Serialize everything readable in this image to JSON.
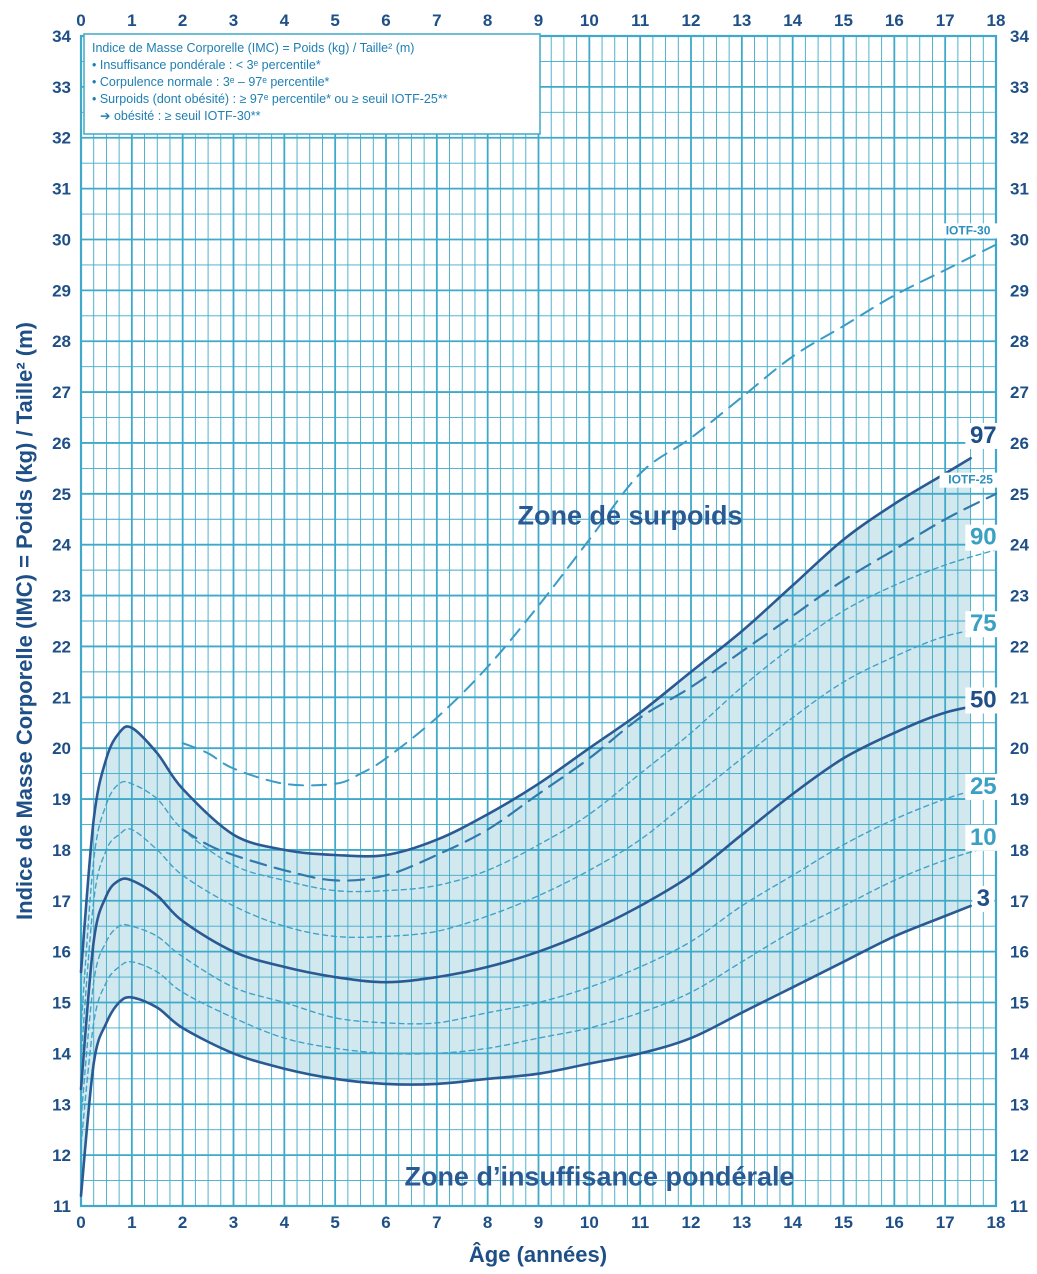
{
  "legend": [
    "Indice de Masse Corporelle (IMC) = Poids (kg) / Taille² (m)",
    "• Insuffisance pondérale : < 3ᵉ percentile*",
    "• Corpulence normale : 3ᵉ – 97ᵉ percentile*",
    "• Surpoids (dont obésité) : ≥ 97ᵉ percentile* ou ≥ seuil IOTF-25**",
    "➔ obésité : ≥ seuil IOTF-30**"
  ],
  "colors": {
    "grid": "#3fa9c9",
    "dark_line": "#2a5a93",
    "light_line": "#3fa3c8",
    "band_fill": "#d2e8ef",
    "text": "#1e4f86"
  },
  "chart_data": {
    "type": "line",
    "xlabel": "Âge (années)",
    "ylabel": "Indice de Masse Corporelle (IMC) = Poids (kg) / Taille² (m)",
    "xlim": [
      0,
      18
    ],
    "ylim": [
      11,
      34
    ],
    "x_ticks": [
      0,
      1,
      2,
      3,
      4,
      5,
      6,
      7,
      8,
      9,
      10,
      11,
      12,
      13,
      14,
      15,
      16,
      17,
      18
    ],
    "y_ticks": [
      11,
      12,
      13,
      14,
      15,
      16,
      17,
      18,
      19,
      20,
      21,
      22,
      23,
      24,
      25,
      26,
      27,
      28,
      29,
      30,
      31,
      32,
      33,
      34
    ],
    "grid": true,
    "annotations": [
      {
        "text": "Zone de surpoids",
        "x": 10.8,
        "y": 24.4
      },
      {
        "text": "Zone d’insuffisance pondérale",
        "x": 10.2,
        "y": 11.4
      }
    ],
    "shaded_band": {
      "lower": "3",
      "upper": "97"
    },
    "series": [
      {
        "name": "3",
        "style": "solid-dark",
        "x": [
          0,
          0.25,
          0.5,
          0.75,
          1,
          1.5,
          2,
          3,
          4,
          5,
          6,
          7,
          8,
          9,
          10,
          11,
          12,
          13,
          14,
          15,
          16,
          17,
          17.5
        ],
        "y": [
          11.2,
          13.8,
          14.6,
          15.0,
          15.1,
          14.9,
          14.5,
          14.0,
          13.7,
          13.5,
          13.4,
          13.4,
          13.5,
          13.6,
          13.8,
          14.0,
          14.3,
          14.8,
          15.3,
          15.8,
          16.3,
          16.7,
          16.9
        ]
      },
      {
        "name": "10",
        "style": "dashed-light",
        "x": [
          0,
          0.25,
          0.5,
          0.75,
          1,
          1.5,
          2,
          3,
          4,
          5,
          6,
          7,
          8,
          9,
          10,
          11,
          12,
          13,
          14,
          15,
          16,
          17,
          18
        ],
        "y": [
          12.2,
          14.6,
          15.4,
          15.7,
          15.8,
          15.6,
          15.2,
          14.7,
          14.3,
          14.1,
          14.0,
          14.0,
          14.1,
          14.3,
          14.5,
          14.8,
          15.2,
          15.8,
          16.4,
          16.9,
          17.4,
          17.8,
          18.1
        ]
      },
      {
        "name": "25",
        "style": "dashed-light",
        "x": [
          0,
          0.25,
          0.5,
          0.75,
          1,
          1.5,
          2,
          3,
          4,
          5,
          6,
          7,
          8,
          9,
          10,
          11,
          12,
          13,
          14,
          15,
          16,
          17,
          18
        ],
        "y": [
          12.7,
          15.4,
          16.2,
          16.5,
          16.5,
          16.3,
          15.9,
          15.3,
          15.0,
          14.7,
          14.6,
          14.6,
          14.8,
          15.0,
          15.3,
          15.7,
          16.2,
          16.9,
          17.5,
          18.1,
          18.6,
          19.0,
          19.3
        ]
      },
      {
        "name": "50",
        "style": "solid-dark",
        "x": [
          0,
          0.25,
          0.5,
          0.75,
          1,
          1.5,
          2,
          3,
          4,
          5,
          6,
          7,
          8,
          9,
          10,
          11,
          12,
          13,
          14,
          15,
          16,
          17,
          18
        ],
        "y": [
          13.3,
          16.2,
          17.1,
          17.4,
          17.4,
          17.1,
          16.6,
          16.0,
          15.7,
          15.5,
          15.4,
          15.5,
          15.7,
          16.0,
          16.4,
          16.9,
          17.5,
          18.3,
          19.1,
          19.8,
          20.3,
          20.7,
          20.9
        ]
      },
      {
        "name": "75",
        "style": "dashed-light",
        "x": [
          0,
          0.25,
          0.5,
          0.75,
          1,
          1.5,
          2,
          3,
          4,
          5,
          6,
          7,
          8,
          9,
          10,
          11,
          12,
          13,
          14,
          15,
          16,
          17,
          18
        ],
        "y": [
          13.9,
          17.0,
          18.0,
          18.3,
          18.4,
          18.0,
          17.5,
          16.9,
          16.5,
          16.3,
          16.3,
          16.4,
          16.7,
          17.1,
          17.6,
          18.2,
          19.0,
          19.8,
          20.6,
          21.3,
          21.8,
          22.2,
          22.4
        ]
      },
      {
        "name": "90",
        "style": "dashed-light",
        "x": [
          0,
          0.25,
          0.5,
          0.75,
          1,
          1.5,
          2,
          3,
          4,
          5,
          6,
          7,
          8,
          9,
          10,
          11,
          12,
          13,
          14,
          15,
          16,
          17,
          18
        ],
        "y": [
          14.5,
          17.8,
          18.9,
          19.3,
          19.3,
          19.0,
          18.4,
          17.7,
          17.4,
          17.2,
          17.2,
          17.3,
          17.6,
          18.1,
          18.7,
          19.5,
          20.3,
          21.2,
          22.0,
          22.7,
          23.2,
          23.6,
          23.9
        ]
      },
      {
        "name": "97",
        "style": "solid-dark",
        "x": [
          0,
          0.25,
          0.5,
          0.75,
          1,
          1.5,
          2,
          3,
          4,
          5,
          6,
          7,
          8,
          9,
          10,
          11,
          12,
          13,
          14,
          15,
          16,
          17,
          17.5
        ],
        "y": [
          15.6,
          18.6,
          19.8,
          20.3,
          20.4,
          19.9,
          19.2,
          18.3,
          18.0,
          17.9,
          17.9,
          18.2,
          18.7,
          19.3,
          20.0,
          20.7,
          21.5,
          22.3,
          23.2,
          24.1,
          24.8,
          25.4,
          25.7
        ]
      },
      {
        "name": "IOTF-25",
        "style": "longdash-mid",
        "x": [
          2,
          2.5,
          3,
          4,
          5,
          6,
          7,
          8,
          9,
          10,
          11,
          12,
          13,
          14,
          15,
          16,
          17,
          18
        ],
        "y": [
          18.4,
          18.1,
          17.9,
          17.6,
          17.4,
          17.5,
          17.9,
          18.4,
          19.1,
          19.8,
          20.6,
          21.2,
          21.9,
          22.6,
          23.3,
          23.9,
          24.5,
          25.0
        ]
      },
      {
        "name": "IOTF-30",
        "style": "longdash-light",
        "x": [
          2,
          2.5,
          3,
          4,
          5,
          5.5,
          6,
          7,
          8,
          9,
          10,
          11,
          12,
          13,
          14,
          15,
          16,
          17,
          18
        ],
        "y": [
          20.1,
          19.9,
          19.6,
          19.3,
          19.3,
          19.5,
          19.8,
          20.6,
          21.6,
          22.8,
          24.1,
          25.4,
          26.1,
          26.9,
          27.7,
          28.3,
          28.9,
          29.4,
          29.9
        ]
      }
    ],
    "curve_labels": [
      {
        "text": "97",
        "series": "97",
        "style": "dark",
        "x": 17.75,
        "y": 26.0
      },
      {
        "text": "IOTF-25",
        "series": "IOTF-25",
        "style": "iotf",
        "x": 17.5,
        "y": 25.2
      },
      {
        "text": "90",
        "series": "90",
        "style": "light",
        "x": 17.75,
        "y": 24.0
      },
      {
        "text": "75",
        "series": "75",
        "style": "light",
        "x": 17.75,
        "y": 22.3
      },
      {
        "text": "50",
        "series": "50",
        "style": "dark",
        "x": 17.75,
        "y": 20.8
      },
      {
        "text": "25",
        "series": "25",
        "style": "light",
        "x": 17.75,
        "y": 19.1
      },
      {
        "text": "10",
        "series": "10",
        "style": "light",
        "x": 17.75,
        "y": 18.1
      },
      {
        "text": "3",
        "series": "3",
        "style": "dark",
        "x": 17.75,
        "y": 16.9
      },
      {
        "text": "IOTF-30",
        "series": "IOTF-30",
        "style": "iotf",
        "x": 17.45,
        "y": 30.1
      }
    ]
  }
}
